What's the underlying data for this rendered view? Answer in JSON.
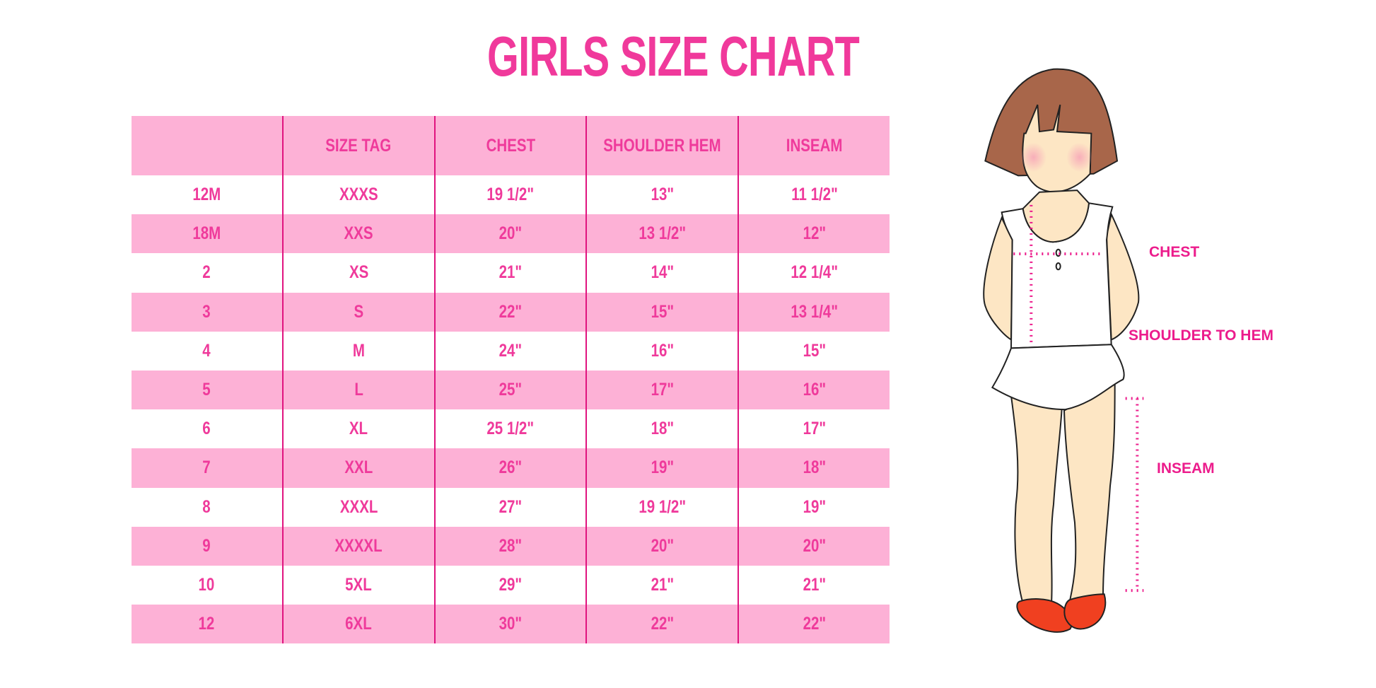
{
  "title": "GIRLS SIZE CHART",
  "colors": {
    "accent": "#f0399b",
    "row_pink": "#fdb1d6",
    "divider": "#e0147f",
    "hair": "#a8664a",
    "skin": "#fde6c4",
    "shoes": "#f04020"
  },
  "table": {
    "headers": [
      "",
      "SIZE TAG",
      "CHEST",
      "SHOULDER HEM",
      "INSEAM"
    ],
    "rows": [
      [
        "12M",
        "XXXS",
        "19 1/2\"",
        "13\"",
        "11 1/2\""
      ],
      [
        "18M",
        "XXS",
        "20\"",
        "13 1/2\"",
        "12\""
      ],
      [
        "2",
        "XS",
        "21\"",
        "14\"",
        "12 1/4\""
      ],
      [
        "3",
        "S",
        "22\"",
        "15\"",
        "13 1/4\""
      ],
      [
        "4",
        "M",
        "24\"",
        "16\"",
        "15\""
      ],
      [
        "5",
        "L",
        "25\"",
        "17\"",
        "16\""
      ],
      [
        "6",
        "XL",
        "25 1/2\"",
        "18\"",
        "17\""
      ],
      [
        "7",
        "XXL",
        "26\"",
        "19\"",
        "18\""
      ],
      [
        "8",
        "XXXL",
        "27\"",
        "19 1/2\"",
        "19\""
      ],
      [
        "9",
        "XXXXL",
        "28\"",
        "20\"",
        "20\""
      ],
      [
        "10",
        "5XL",
        "29\"",
        "21\"",
        "21\""
      ],
      [
        "12",
        "6XL",
        "30\"",
        "22\"",
        "22\""
      ]
    ]
  },
  "figure": {
    "labels": {
      "chest": "CHEST",
      "shoulder_to_hem": "SHOULDER TO HEM",
      "inseam": "INSEAM"
    }
  }
}
